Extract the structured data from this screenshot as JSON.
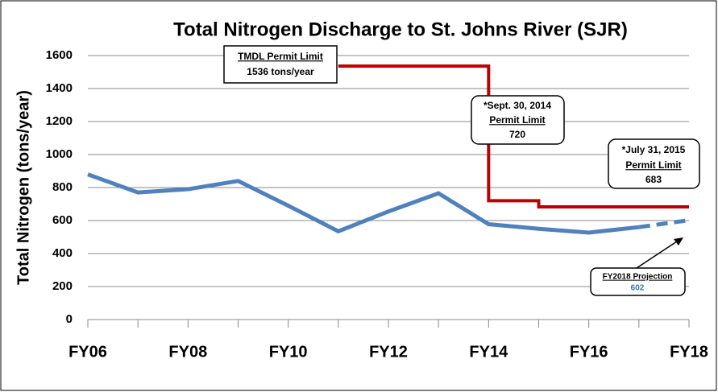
{
  "chart_data": {
    "type": "line",
    "title": "Total Nitrogen Discharge to St. Johns River (SJR)",
    "y_label": "Total Nitrogen (tons/year)",
    "categories": [
      "FY06",
      null,
      "FY08",
      null,
      "FY10",
      null,
      "FY12",
      null,
      "FY14",
      null,
      "FY16",
      null,
      "FY18"
    ],
    "series": [
      {
        "color": "#4f81bd",
        "values": [
          880,
          770,
          790,
          840,
          690,
          535,
          655,
          765,
          578,
          550,
          527,
          560,
          null
        ]
      },
      {
        "color": "#4f81bd",
        "style": "dashed",
        "values": [
          null,
          null,
          null,
          null,
          null,
          null,
          null,
          null,
          null,
          null,
          null,
          560,
          602
        ]
      },
      {
        "color": "#c00000",
        "step": true,
        "values": [
          null,
          null,
          null,
          null,
          null,
          1536,
          1536,
          1536,
          720,
          683,
          683,
          683,
          683
        ]
      }
    ],
    "ylim": [
      0,
      1600
    ],
    "yticks": [
      0,
      200,
      400,
      600,
      800,
      1000,
      1200,
      1400,
      1600
    ],
    "grid": true,
    "annotations": [
      {
        "lines": [
          "TMDL Permit Limit",
          "1536 tons/year"
        ]
      },
      {
        "lines": [
          "*Sept. 30, 2014",
          "Permit Limit",
          "720"
        ]
      },
      {
        "lines": [
          "*July 31, 2015",
          "Permit Limit",
          "683"
        ]
      },
      {
        "lines": [
          "FY2018 Projection",
          "602"
        ]
      }
    ]
  }
}
